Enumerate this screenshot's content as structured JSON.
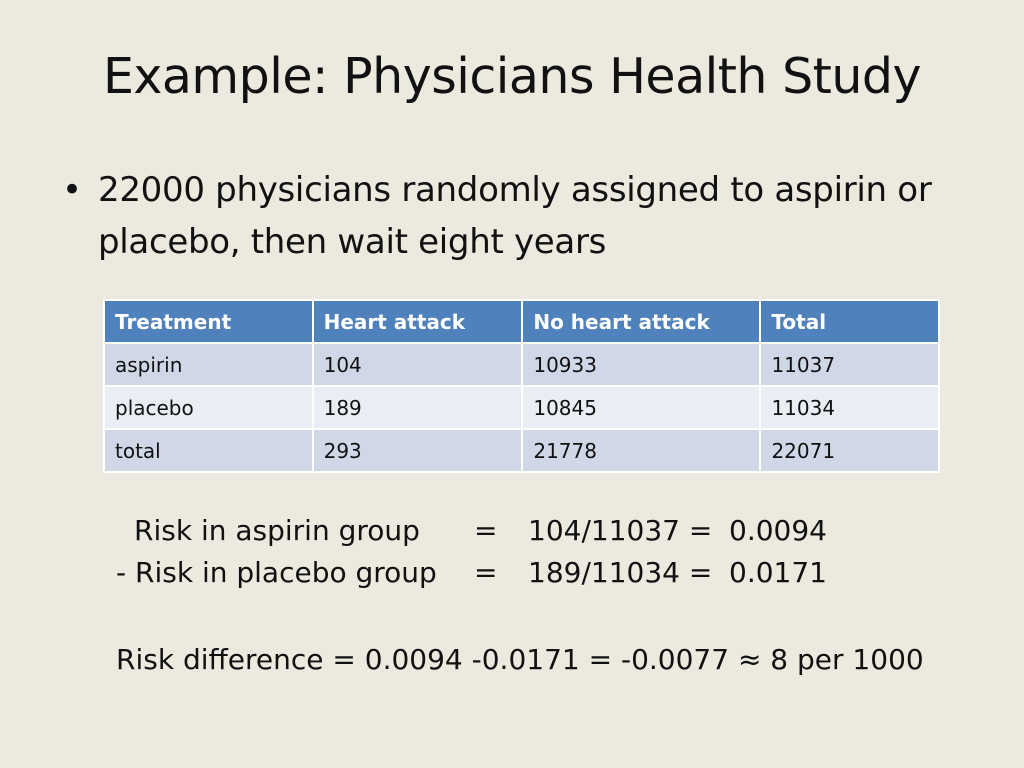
{
  "slide": {
    "title": "Example: Physicians Health Study",
    "bullet": {
      "symbol": "•",
      "text": "22000 physicians randomly assigned to aspirin or placebo, then wait eight years"
    },
    "table": {
      "headers": [
        "Treatment",
        "Heart attack",
        "No heart attack",
        "Total"
      ],
      "rows": [
        [
          "aspirin",
          "104",
          "10933",
          "11037"
        ],
        [
          "placebo",
          "189",
          "10845",
          "11034"
        ],
        [
          "total",
          "293",
          "21778",
          "22071"
        ]
      ]
    },
    "calculations": [
      {
        "label": "Risk in aspirin group",
        "eq": "=",
        "fraction": "104/11037 =",
        "value": "0.0094"
      },
      {
        "label": "- Risk in placebo group",
        "eq": "=",
        "fraction": "189/11034 =",
        "value": "0.0171"
      }
    ],
    "summary": "Risk difference = 0.0094 -0.0171 =  -0.0077 ≈ 8 per 1000"
  },
  "colors": {
    "background": "#ece9de",
    "header_fill": "#4f81bd",
    "row_fill_dark": "#d0d8e8",
    "row_fill_light": "#e9edf4"
  }
}
